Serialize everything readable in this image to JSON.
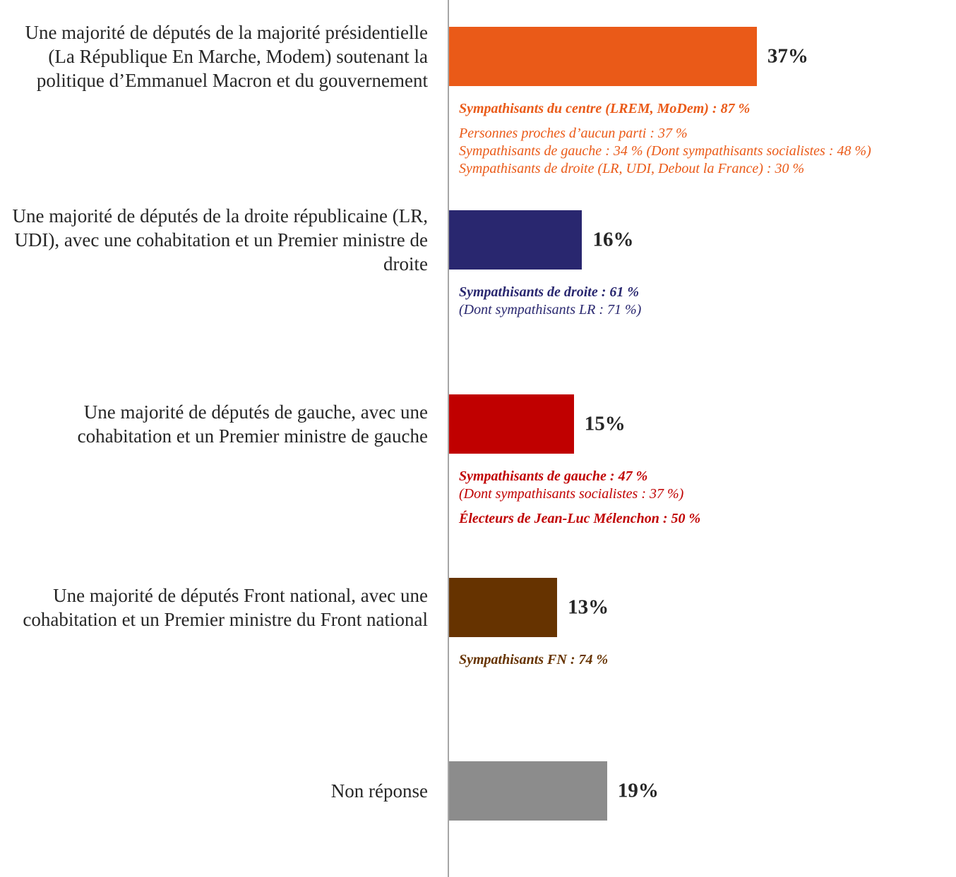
{
  "chart_data": {
    "type": "bar",
    "orientation": "horizontal",
    "categories": [
      "Une majorité de députés de la majorité présidentielle (La République En Marche, Modem) soutenant la politique d’Emmanuel Macron et du gouvernement",
      "Une majorité de députés de la droite républicaine (LR, UDI), avec une cohabitation et un Premier ministre de droite",
      "Une majorité de députés de gauche, avec une cohabitation et un Premier ministre de gauche",
      "Une majorité de députés Front national, avec une cohabitation et un Premier ministre du Front national",
      "Non réponse"
    ],
    "values": [
      37,
      16,
      15,
      13,
      19
    ],
    "value_labels": [
      "37%",
      "16%",
      "15%",
      "13%",
      "19%"
    ],
    "colors": [
      "#ea5a18",
      "#29276f",
      "#c00000",
      "#663300",
      "#8c8c8c"
    ],
    "annotations": [
      [
        [
          {
            "text": "Sympathisants du centre (LREM, MoDem) : 87 %",
            "bold": true
          }
        ],
        [
          {
            "text": "Personnes proches d’aucun parti : 37 %",
            "bold": false
          },
          {
            "text": "Sympathisants de gauche : 34 % (Dont sympathisants socialistes : 48 %)",
            "bold": false
          },
          {
            "text": "Sympathisants de droite (LR, UDI, Debout la France) : 30 %",
            "bold": false
          }
        ]
      ],
      [
        [
          {
            "text": "Sympathisants de droite : 61 %",
            "bold": true
          },
          {
            "text": "(Dont sympathisants LR : 71 %)",
            "bold": false
          }
        ]
      ],
      [
        [
          {
            "text": "Sympathisants de gauche : 47 %",
            "bold": true
          },
          {
            "text": "(Dont sympathisants socialistes : 37 %)",
            "bold": false
          }
        ],
        [
          {
            "text": "Électeurs de Jean-Luc Mélenchon : 50 %",
            "bold": true
          }
        ]
      ],
      [
        [
          {
            "text": "Sympathisants FN : 74 %",
            "bold": true
          }
        ]
      ],
      []
    ]
  }
}
